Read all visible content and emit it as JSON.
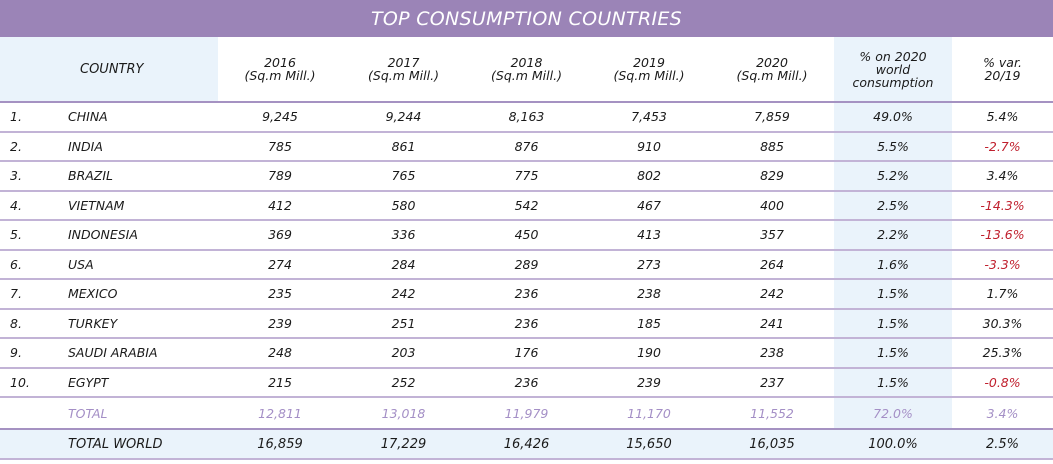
{
  "title": "TOP CONSUMPTION COUNTRIES",
  "headers": {
    "country": "COUNTRY",
    "y2016": [
      "2016",
      "(Sq.m Mill.)"
    ],
    "y2017": [
      "2017",
      "(Sq.m Mill.)"
    ],
    "y2018": [
      "2018",
      "(Sq.m Mill.)"
    ],
    "y2019": [
      "2019",
      "(Sq.m Mill.)"
    ],
    "y2020": [
      "2020",
      "(Sq.m Mill.)"
    ],
    "pct_world": [
      "% on 2020",
      "world",
      "consumption"
    ],
    "var": [
      "% var.",
      "20/19"
    ]
  },
  "rows": [
    {
      "rank": "1.",
      "country": "CHINA",
      "v": [
        "9,245",
        "9,244",
        "8,163",
        "7,453",
        "7,859"
      ],
      "pct": "49.0%",
      "var": "5.4%",
      "neg": false
    },
    {
      "rank": "2.",
      "country": "INDIA",
      "v": [
        "785",
        "861",
        "876",
        "910",
        "885"
      ],
      "pct": "5.5%",
      "var": "-2.7%",
      "neg": true
    },
    {
      "rank": "3.",
      "country": "BRAZIL",
      "v": [
        "789",
        "765",
        "775",
        "802",
        "829"
      ],
      "pct": "5.2%",
      "var": "3.4%",
      "neg": false
    },
    {
      "rank": "4.",
      "country": "VIETNAM",
      "v": [
        "412",
        "580",
        "542",
        "467",
        "400"
      ],
      "pct": "2.5%",
      "var": "-14.3%",
      "neg": true
    },
    {
      "rank": "5.",
      "country": "INDONESIA",
      "v": [
        "369",
        "336",
        "450",
        "413",
        "357"
      ],
      "pct": "2.2%",
      "var": "-13.6%",
      "neg": true
    },
    {
      "rank": "6.",
      "country": "USA",
      "v": [
        "274",
        "284",
        "289",
        "273",
        "264"
      ],
      "pct": "1.6%",
      "var": "-3.3%",
      "neg": true
    },
    {
      "rank": "7.",
      "country": "MEXICO",
      "v": [
        "235",
        "242",
        "236",
        "238",
        "242"
      ],
      "pct": "1.5%",
      "var": "1.7%",
      "neg": false
    },
    {
      "rank": "8.",
      "country": "TURKEY",
      "v": [
        "239",
        "251",
        "236",
        "185",
        "241"
      ],
      "pct": "1.5%",
      "var": "30.3%",
      "neg": false
    },
    {
      "rank": "9.",
      "country": "SAUDI ARABIA",
      "v": [
        "248",
        "203",
        "176",
        "190",
        "238"
      ],
      "pct": "1.5%",
      "var": "25.3%",
      "neg": false
    },
    {
      "rank": "10.",
      "country": "EGYPT",
      "v": [
        "215",
        "252",
        "236",
        "239",
        "237"
      ],
      "pct": "1.5%",
      "var": "-0.8%",
      "neg": true
    }
  ],
  "total": {
    "label": "TOTAL",
    "v": [
      "12,811",
      "13,018",
      "11,979",
      "11,170",
      "11,552"
    ],
    "pct": "72.0%",
    "var": "3.4%"
  },
  "total_world": {
    "label": "TOTAL WORLD",
    "v": [
      "16,859",
      "17,229",
      "16,426",
      "15,650",
      "16,035"
    ],
    "pct": "100.0%",
    "var": "2.5%"
  },
  "colors": {
    "header": "#9b84b7",
    "negative": "#c0202e",
    "total": "#a48fc6",
    "highlight": "#eaf3fb"
  }
}
